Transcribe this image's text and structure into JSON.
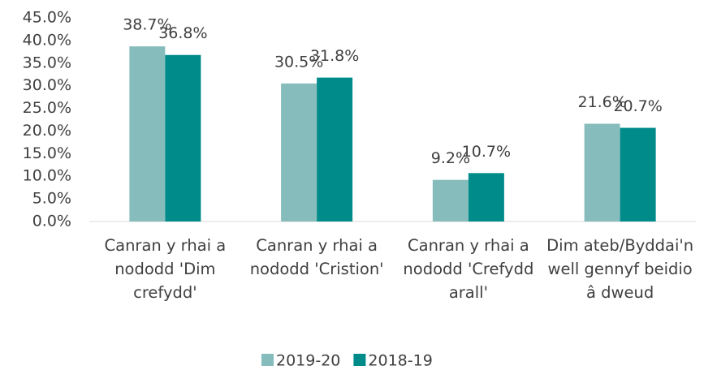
{
  "chart_data": {
    "type": "bar",
    "categories": [
      "Canran y rhai a nododd 'Dim crefydd'",
      "Canran y rhai a nododd 'Cristion'",
      "Canran y rhai a nododd 'Crefydd arall'",
      "Dim ateb/Byddai'n well gennyf beidio â dweud"
    ],
    "series": [
      {
        "name": "2019-20",
        "color": "#86bcbc",
        "values": [
          38.7,
          30.5,
          9.2,
          21.6
        ],
        "value_labels": [
          "38.7%",
          "30.5%",
          "9.2%",
          "21.6%"
        ]
      },
      {
        "name": "2018-19",
        "color": "#008b8b",
        "values": [
          36.8,
          31.8,
          10.7,
          20.7
        ],
        "value_labels": [
          "36.8%",
          "31.8%",
          "10.7%",
          "20.7%"
        ]
      }
    ],
    "ylim": [
      0,
      45
    ],
    "yticks": [
      {
        "value": 0,
        "label": "0.0%"
      },
      {
        "value": 5,
        "label": "5.0%"
      },
      {
        "value": 10,
        "label": "10.0%"
      },
      {
        "value": 15,
        "label": "15.0%"
      },
      {
        "value": 20,
        "label": "20.0%"
      },
      {
        "value": 25,
        "label": "25.0%"
      },
      {
        "value": 30,
        "label": "30.0%"
      },
      {
        "value": 35,
        "label": "35.0%"
      },
      {
        "value": 40,
        "label": "40.0%"
      },
      {
        "value": 45,
        "label": "45.0%"
      }
    ],
    "grid": false,
    "legend": "bottom"
  }
}
